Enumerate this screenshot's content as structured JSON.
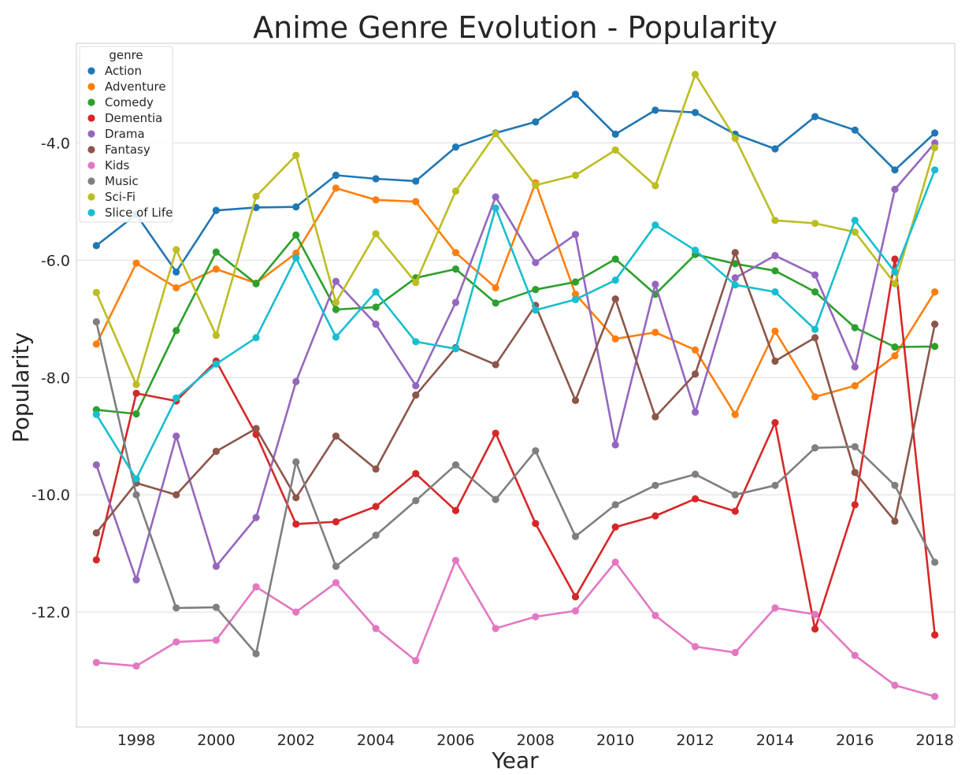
{
  "chart_data": {
    "type": "line",
    "title": "Anime Genre Evolution - Popularity",
    "xlabel": "Year",
    "ylabel": "Popularity",
    "x": [
      1997,
      1998,
      1999,
      2000,
      2001,
      2002,
      2003,
      2004,
      2005,
      2006,
      2007,
      2008,
      2009,
      2010,
      2011,
      2012,
      2013,
      2014,
      2015,
      2016,
      2017,
      2018
    ],
    "x_ticks": [
      "1998",
      "2000",
      "2002",
      "2004",
      "2006",
      "2008",
      "2010",
      "2012",
      "2014",
      "2016",
      "2018"
    ],
    "x_tick_values": [
      1998,
      2000,
      2002,
      2004,
      2006,
      2008,
      2010,
      2012,
      2014,
      2016,
      2018
    ],
    "y_ticks": [
      "-4.0",
      "-6.0",
      "-8.0",
      "-10.0",
      "-12.0"
    ],
    "y_tick_values": [
      -4,
      -6,
      -8,
      -10,
      -12
    ],
    "xlim": [
      1996.5,
      2018.5
    ],
    "ylim": [
      -13.96,
      -2.3
    ],
    "grid": "horizontal",
    "legend": {
      "title": "genre",
      "position": "upper-left"
    },
    "series": [
      {
        "name": "Action",
        "color": "#1f77b4",
        "values": [
          -5.75,
          -5.22,
          -6.2,
          -5.15,
          -5.1,
          -5.09,
          -4.55,
          -4.61,
          -4.65,
          -4.07,
          -3.83,
          -3.64,
          -3.17,
          -3.85,
          -3.44,
          -3.48,
          -3.85,
          -4.1,
          -3.55,
          -3.78,
          -4.46,
          -3.83
        ]
      },
      {
        "name": "Adventure",
        "color": "#ff7f0e",
        "values": [
          -7.43,
          -6.05,
          -6.47,
          -6.15,
          -6.39,
          -5.88,
          -4.77,
          -4.97,
          -5.0,
          -5.87,
          -6.47,
          -4.68,
          -6.58,
          -7.34,
          -7.23,
          -7.53,
          -8.63,
          -7.21,
          -8.33,
          -8.14,
          -7.63,
          -6.54
        ]
      },
      {
        "name": "Comedy",
        "color": "#2ca02c",
        "values": [
          -8.55,
          -8.62,
          -7.2,
          -5.86,
          -6.4,
          -5.57,
          -6.84,
          -6.8,
          -6.3,
          -6.15,
          -6.73,
          -6.5,
          -6.37,
          -5.98,
          -6.58,
          -5.9,
          -6.06,
          -6.18,
          -6.54,
          -7.15,
          -7.48,
          -7.47
        ]
      },
      {
        "name": "Dementia",
        "color": "#d62728",
        "values": [
          -11.11,
          -8.27,
          -8.4,
          -7.72,
          -8.97,
          -10.5,
          -10.46,
          -10.2,
          -9.64,
          -10.27,
          -8.95,
          -10.49,
          -11.74,
          -10.55,
          -10.36,
          -10.07,
          -10.28,
          -8.77,
          -12.29,
          -10.17,
          -5.98,
          -12.39
        ]
      },
      {
        "name": "Drama",
        "color": "#9467bd",
        "values": [
          -9.49,
          -11.45,
          -9.0,
          -11.22,
          -10.39,
          -8.07,
          -6.36,
          -7.09,
          -8.14,
          -6.72,
          -4.92,
          -6.04,
          -5.56,
          -9.15,
          -6.41,
          -8.59,
          -6.3,
          -5.92,
          -6.25,
          -7.82,
          -4.79,
          -4.0
        ]
      },
      {
        "name": "Fantasy",
        "color": "#8c564b",
        "values": [
          -10.65,
          -9.8,
          -10.0,
          -9.26,
          -8.87,
          -10.05,
          -9.0,
          -9.56,
          -8.3,
          -7.49,
          -7.78,
          -6.77,
          -8.39,
          -6.66,
          -8.67,
          -7.94,
          -5.87,
          -7.72,
          -7.32,
          -9.62,
          -10.45,
          -7.09
        ]
      },
      {
        "name": "Kids",
        "color": "#e377c2",
        "values": [
          -12.86,
          -12.92,
          -12.51,
          -12.48,
          -11.57,
          -12.0,
          -11.5,
          -12.28,
          -12.83,
          -11.12,
          -12.28,
          -12.08,
          -11.98,
          -11.15,
          -12.06,
          -12.59,
          -12.69,
          -11.93,
          -12.04,
          -12.74,
          -13.25,
          -13.44
        ]
      },
      {
        "name": "Music",
        "color": "#7f7f7f",
        "values": [
          -7.05,
          -10.0,
          -11.93,
          -11.92,
          -12.71,
          -9.44,
          -11.22,
          -10.69,
          -10.1,
          -9.49,
          -10.08,
          -9.25,
          -10.71,
          -10.17,
          -9.84,
          -9.65,
          -10.0,
          -9.84,
          -9.2,
          -9.18,
          -9.84,
          -11.15
        ]
      },
      {
        "name": "Sci-Fi",
        "color": "#bcbd22",
        "values": [
          -6.55,
          -8.12,
          -5.82,
          -7.28,
          -4.91,
          -4.21,
          -6.72,
          -5.55,
          -6.38,
          -4.82,
          -3.84,
          -4.72,
          -4.55,
          -4.12,
          -4.73,
          -2.83,
          -3.92,
          -5.32,
          -5.37,
          -5.52,
          -6.4,
          -4.08
        ]
      },
      {
        "name": "Slice of Life",
        "color": "#17becf",
        "values": [
          -8.63,
          -9.73,
          -8.35,
          -7.77,
          -7.32,
          -5.96,
          -7.31,
          -6.54,
          -7.39,
          -7.51,
          -5.11,
          -6.85,
          -6.67,
          -6.34,
          -5.4,
          -5.83,
          -6.42,
          -6.54,
          -7.18,
          -5.32,
          -6.2,
          -4.46
        ]
      }
    ]
  }
}
